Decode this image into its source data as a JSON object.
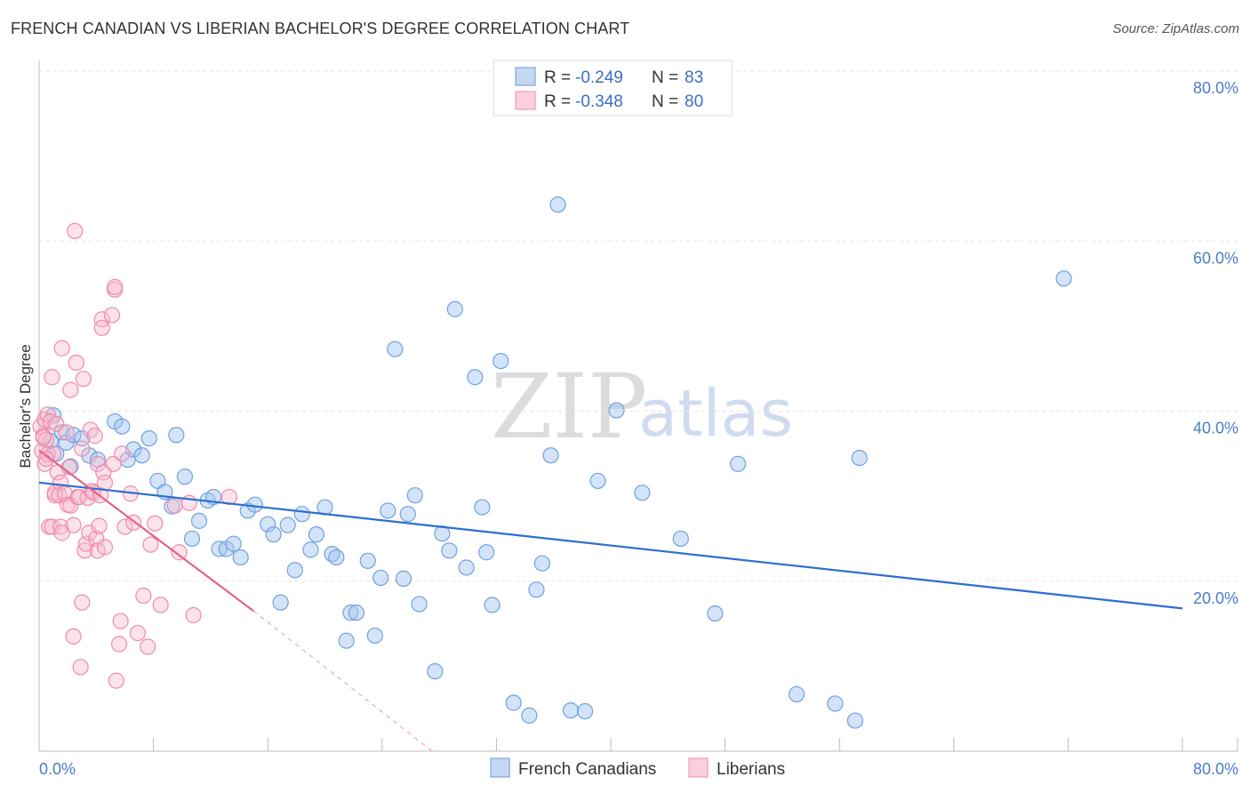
{
  "title": "FRENCH CANADIAN VS LIBERIAN BACHELOR'S DEGREE CORRELATION CHART",
  "source": "Source: ZipAtlas.com",
  "watermark": {
    "zip": "ZIP",
    "atlas": "atlas"
  },
  "legend": {
    "rows": [
      {
        "r_label": "R = ",
        "r_value": "-0.249",
        "n_label": "N = ",
        "n_value": "83"
      },
      {
        "r_label": "R = ",
        "r_value": "-0.348",
        "n_label": "N = ",
        "n_value": "80"
      }
    ]
  },
  "bottom_legend": [
    "French Canadians",
    "Liberians"
  ],
  "chart_data": {
    "type": "scatter",
    "title": "FRENCH CANADIAN VS LIBERIAN BACHELOR'S DEGREE CORRELATION CHART",
    "xlabel": "",
    "ylabel": "Bachelor's Degree",
    "xlim": [
      0,
      80
    ],
    "ylim": [
      0,
      80
    ],
    "y_tick_labels": [
      "20.0%",
      "40.0%",
      "60.0%",
      "80.0%"
    ],
    "y_tick_values": [
      20,
      40,
      60,
      80
    ],
    "x_tick_labels": [
      "0.0%",
      "80.0%"
    ],
    "x_tick_values": [
      0,
      80
    ],
    "colors": {
      "french": "#6fa0e0",
      "french_line": "#2a6fd0",
      "liberian": "#f08aa8",
      "liberian_line": "#e2628f"
    },
    "series": [
      {
        "name": "French Canadians",
        "r": -0.249,
        "n": 83,
        "trend": {
          "x0": 0,
          "y0": 31.6,
          "x1": 80,
          "y1": 16.8
        },
        "points": [
          [
            0.8,
            36.5
          ],
          [
            1.0,
            39.5
          ],
          [
            1.2,
            35.0
          ],
          [
            1.6,
            37.5
          ],
          [
            1.9,
            36.3
          ],
          [
            2.2,
            33.5
          ],
          [
            2.4,
            37.2
          ],
          [
            3.0,
            36.8
          ],
          [
            3.5,
            34.8
          ],
          [
            4.1,
            34.3
          ],
          [
            5.3,
            38.8
          ],
          [
            5.8,
            38.2
          ],
          [
            6.2,
            34.3
          ],
          [
            6.6,
            35.5
          ],
          [
            7.2,
            34.8
          ],
          [
            7.7,
            36.8
          ],
          [
            8.3,
            31.8
          ],
          [
            8.8,
            30.5
          ],
          [
            9.3,
            28.8
          ],
          [
            9.6,
            37.2
          ],
          [
            10.2,
            32.3
          ],
          [
            10.7,
            25.0
          ],
          [
            11.2,
            27.1
          ],
          [
            11.8,
            29.5
          ],
          [
            12.2,
            29.9
          ],
          [
            12.6,
            23.8
          ],
          [
            13.1,
            23.8
          ],
          [
            13.6,
            24.4
          ],
          [
            14.1,
            22.8
          ],
          [
            14.6,
            28.3
          ],
          [
            15.1,
            29.0
          ],
          [
            16.0,
            26.7
          ],
          [
            16.4,
            25.5
          ],
          [
            16.9,
            17.5
          ],
          [
            17.4,
            26.6
          ],
          [
            17.9,
            21.3
          ],
          [
            18.4,
            27.9
          ],
          [
            19.0,
            23.7
          ],
          [
            19.4,
            25.5
          ],
          [
            20.0,
            28.7
          ],
          [
            20.5,
            23.2
          ],
          [
            20.8,
            22.8
          ],
          [
            21.5,
            13.0
          ],
          [
            21.8,
            16.3
          ],
          [
            22.2,
            16.3
          ],
          [
            23.0,
            22.4
          ],
          [
            23.5,
            13.6
          ],
          [
            23.9,
            20.4
          ],
          [
            24.4,
            28.3
          ],
          [
            24.9,
            47.3
          ],
          [
            25.5,
            20.3
          ],
          [
            25.8,
            27.9
          ],
          [
            26.3,
            30.1
          ],
          [
            26.6,
            17.3
          ],
          [
            27.7,
            9.4
          ],
          [
            28.2,
            25.6
          ],
          [
            28.7,
            23.6
          ],
          [
            29.1,
            52.0
          ],
          [
            29.9,
            21.6
          ],
          [
            30.5,
            44.0
          ],
          [
            31.0,
            28.7
          ],
          [
            31.3,
            23.4
          ],
          [
            31.7,
            17.2
          ],
          [
            32.3,
            45.9
          ],
          [
            33.2,
            5.7
          ],
          [
            34.3,
            4.2
          ],
          [
            34.8,
            19.0
          ],
          [
            35.2,
            22.1
          ],
          [
            35.8,
            34.8
          ],
          [
            36.3,
            64.3
          ],
          [
            37.2,
            4.8
          ],
          [
            38.2,
            4.7
          ],
          [
            39.1,
            31.8
          ],
          [
            40.4,
            40.1
          ],
          [
            42.2,
            30.4
          ],
          [
            44.9,
            25.0
          ],
          [
            47.3,
            16.2
          ],
          [
            48.9,
            33.8
          ],
          [
            53.0,
            6.7
          ],
          [
            55.7,
            5.6
          ],
          [
            57.1,
            3.6
          ],
          [
            57.4,
            34.5
          ],
          [
            71.7,
            55.6
          ]
        ]
      },
      {
        "name": "Liberians",
        "r": -0.348,
        "n": 80,
        "trend": {
          "x0": 0,
          "y0": 35.4,
          "x1": 15,
          "y1": 16.5
        },
        "trend_dashed": {
          "x0": 15,
          "y0": 16.5,
          "x1": 27.5,
          "y1": 0
        },
        "points": [
          [
            0.1,
            38.2
          ],
          [
            0.2,
            35.3
          ],
          [
            0.3,
            37.1
          ],
          [
            0.4,
            39.0
          ],
          [
            0.4,
            33.8
          ],
          [
            0.5,
            36.6
          ],
          [
            0.6,
            39.6
          ],
          [
            0.6,
            34.9
          ],
          [
            0.7,
            26.4
          ],
          [
            0.8,
            38.8
          ],
          [
            0.9,
            26.4
          ],
          [
            0.9,
            44.0
          ],
          [
            1.0,
            35.0
          ],
          [
            1.1,
            30.1
          ],
          [
            1.1,
            30.4
          ],
          [
            1.2,
            38.5
          ],
          [
            1.3,
            32.8
          ],
          [
            1.4,
            30.1
          ],
          [
            1.5,
            31.6
          ],
          [
            1.5,
            26.4
          ],
          [
            1.6,
            25.7
          ],
          [
            1.6,
            47.4
          ],
          [
            1.8,
            30.3
          ],
          [
            1.9,
            37.5
          ],
          [
            2.0,
            29.0
          ],
          [
            2.1,
            33.4
          ],
          [
            2.2,
            28.9
          ],
          [
            2.2,
            42.5
          ],
          [
            2.4,
            13.5
          ],
          [
            2.4,
            26.6
          ],
          [
            2.5,
            61.2
          ],
          [
            2.6,
            45.7
          ],
          [
            2.7,
            29.9
          ],
          [
            2.8,
            29.9
          ],
          [
            2.9,
            9.9
          ],
          [
            3.0,
            35.6
          ],
          [
            3.0,
            17.5
          ],
          [
            3.1,
            43.8
          ],
          [
            3.2,
            23.6
          ],
          [
            3.3,
            24.4
          ],
          [
            3.4,
            29.8
          ],
          [
            3.5,
            25.7
          ],
          [
            3.6,
            37.8
          ],
          [
            3.7,
            30.6
          ],
          [
            3.8,
            30.4
          ],
          [
            3.9,
            37.1
          ],
          [
            4.0,
            25.0
          ],
          [
            4.1,
            23.6
          ],
          [
            4.1,
            33.8
          ],
          [
            4.2,
            26.5
          ],
          [
            4.3,
            30.1
          ],
          [
            4.4,
            50.8
          ],
          [
            4.4,
            49.8
          ],
          [
            4.5,
            32.8
          ],
          [
            4.6,
            24.0
          ],
          [
            4.6,
            31.6
          ],
          [
            5.1,
            51.3
          ],
          [
            5.2,
            33.8
          ],
          [
            5.3,
            54.3
          ],
          [
            5.3,
            54.6
          ],
          [
            5.4,
            8.3
          ],
          [
            5.6,
            12.6
          ],
          [
            5.7,
            15.3
          ],
          [
            5.8,
            35.0
          ],
          [
            6.0,
            26.4
          ],
          [
            6.4,
            30.3
          ],
          [
            6.6,
            26.9
          ],
          [
            6.9,
            13.9
          ],
          [
            7.3,
            18.3
          ],
          [
            7.6,
            12.3
          ],
          [
            7.8,
            24.3
          ],
          [
            8.1,
            26.8
          ],
          [
            8.5,
            17.2
          ],
          [
            9.5,
            28.9
          ],
          [
            9.8,
            23.4
          ],
          [
            10.5,
            29.2
          ],
          [
            10.8,
            16.0
          ],
          [
            13.3,
            29.9
          ],
          [
            0.3,
            36.9
          ],
          [
            0.5,
            34.4
          ]
        ]
      }
    ]
  }
}
